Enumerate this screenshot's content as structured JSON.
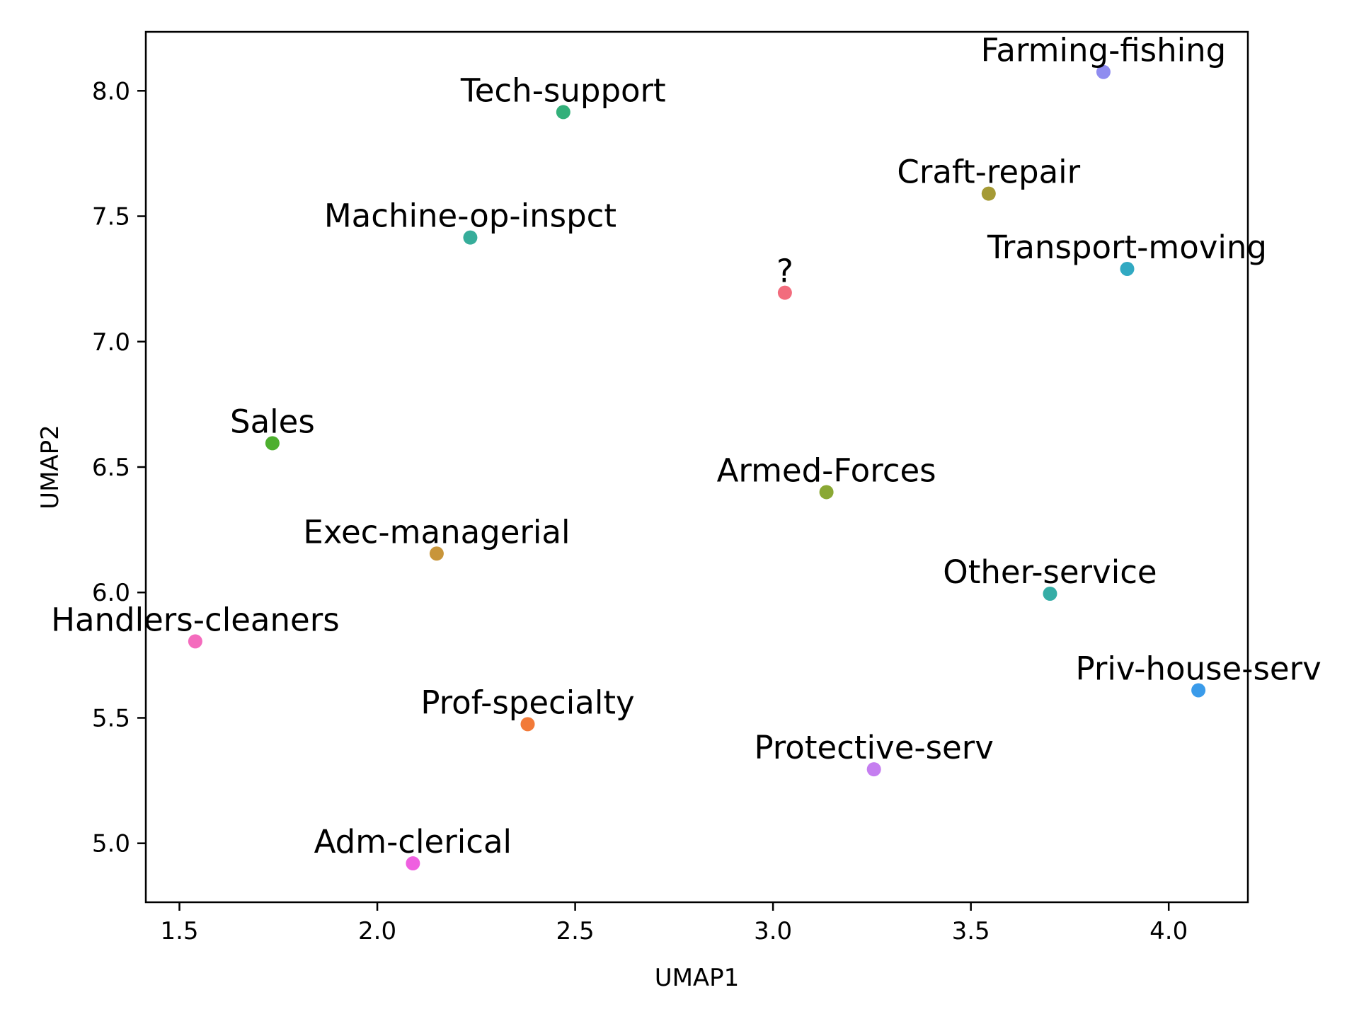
{
  "chart_data": {
    "type": "scatter",
    "title": "",
    "xlabel": "UMAP1",
    "ylabel": "UMAP2",
    "xlim": [
      1.415,
      4.2
    ],
    "ylim": [
      4.765,
      8.235
    ],
    "xticks": [
      "1.5",
      "2.0",
      "2.5",
      "3.0",
      "3.5",
      "4.0"
    ],
    "yticks": [
      "5.0",
      "5.5",
      "6.0",
      "6.5",
      "7.0",
      "7.5",
      "8.0"
    ],
    "grid": false,
    "legend": "none",
    "points": [
      {
        "label": "Farming-fishing",
        "x": 3.835,
        "y": 8.075,
        "color": "#8f8cf0"
      },
      {
        "label": "Tech-support",
        "x": 2.47,
        "y": 7.915,
        "color": "#33b07a"
      },
      {
        "label": "Craft-repair",
        "x": 3.545,
        "y": 7.59,
        "color": "#a59a35"
      },
      {
        "label": "Machine-op-inspct",
        "x": 2.235,
        "y": 7.415,
        "color": "#36ad9a"
      },
      {
        "label": "Transport-moving",
        "x": 3.895,
        "y": 7.29,
        "color": "#31a9c2"
      },
      {
        "label": "?",
        "x": 3.03,
        "y": 7.195,
        "color": "#f26c7d"
      },
      {
        "label": "Sales",
        "x": 1.735,
        "y": 6.595,
        "color": "#4daf2e"
      },
      {
        "label": "Armed-Forces",
        "x": 3.135,
        "y": 6.4,
        "color": "#8aa834"
      },
      {
        "label": "Exec-managerial",
        "x": 2.15,
        "y": 6.155,
        "color": "#c8953a"
      },
      {
        "label": "Other-service",
        "x": 3.7,
        "y": 5.995,
        "color": "#35ada6"
      },
      {
        "label": "Handlers-cleaners",
        "x": 1.54,
        "y": 5.805,
        "color": "#f46bbd"
      },
      {
        "label": "Priv-house-serv",
        "x": 4.075,
        "y": 5.61,
        "color": "#3a9bea"
      },
      {
        "label": "Prof-specialty",
        "x": 2.38,
        "y": 5.475,
        "color": "#f27a38"
      },
      {
        "label": "Protective-serv",
        "x": 3.255,
        "y": 5.295,
        "color": "#c57ef0"
      },
      {
        "label": "Adm-clerical",
        "x": 2.09,
        "y": 4.92,
        "color": "#ef60e0"
      }
    ]
  }
}
